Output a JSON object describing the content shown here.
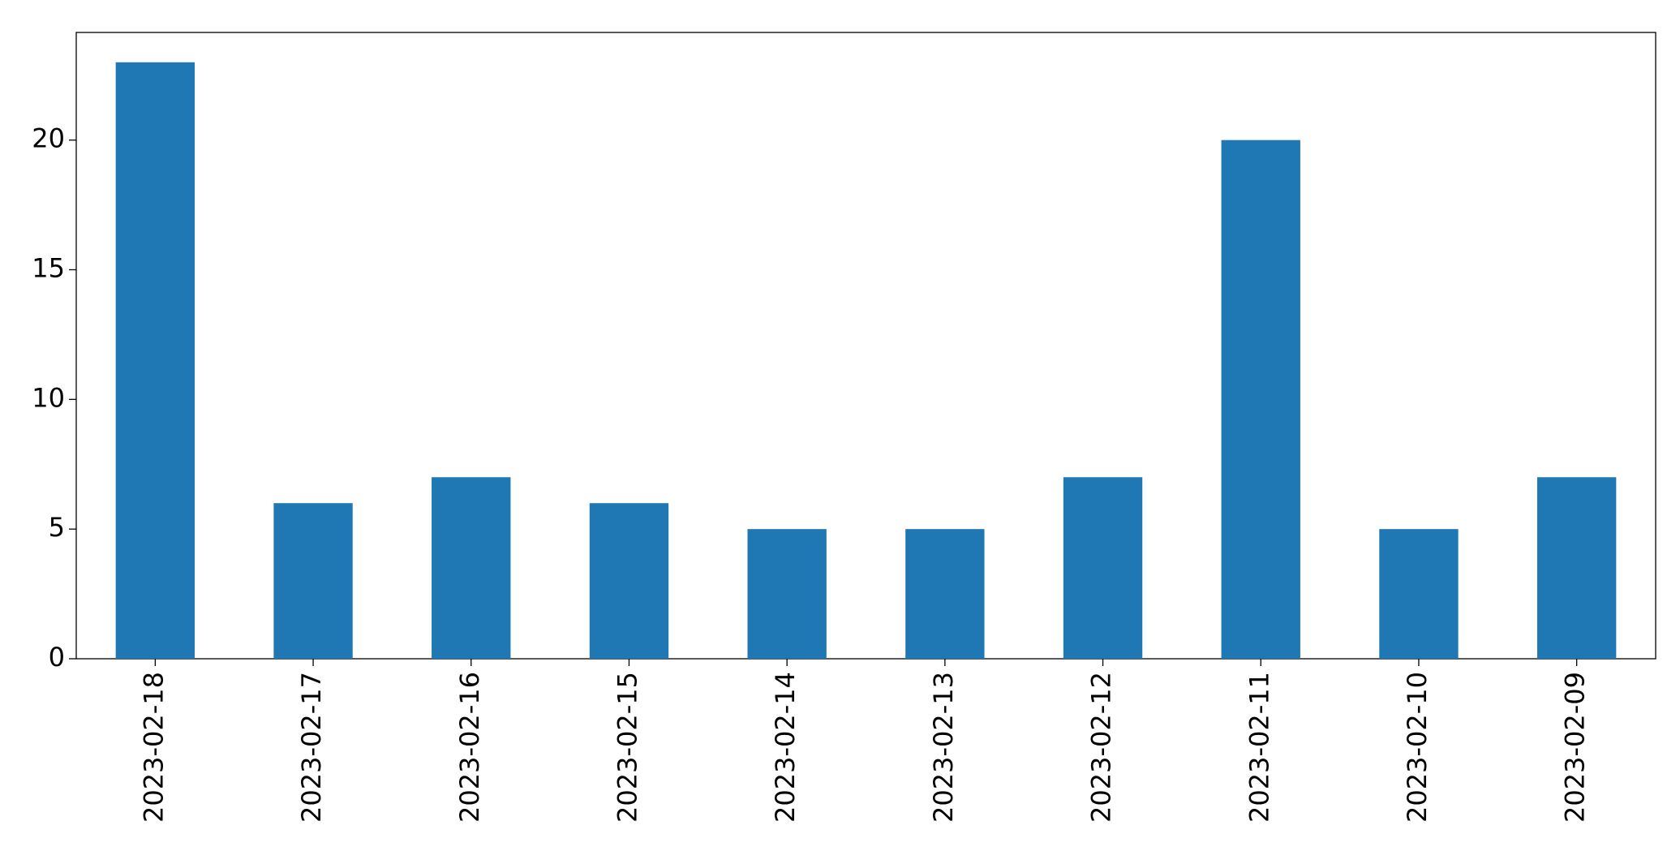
{
  "chart_data": {
    "type": "bar",
    "categories": [
      "2023-02-18",
      "2023-02-17",
      "2023-02-16",
      "2023-02-15",
      "2023-02-14",
      "2023-02-13",
      "2023-02-12",
      "2023-02-11",
      "2023-02-10",
      "2023-02-09"
    ],
    "values": [
      23,
      6,
      7,
      6,
      5,
      5,
      7,
      20,
      5,
      7
    ],
    "color": "#1f77b4",
    "ylim": [
      0,
      24.15
    ],
    "yticks": [
      0,
      5,
      10,
      15,
      20
    ],
    "grid": false
  }
}
